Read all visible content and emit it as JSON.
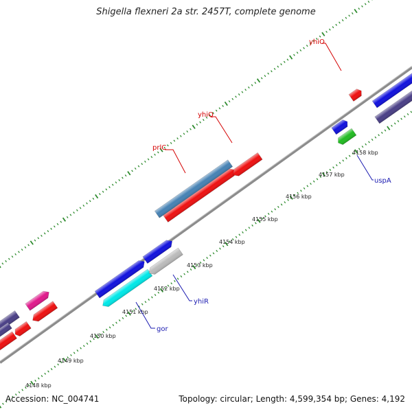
{
  "title": "Shigella flexneri 2a str. 2457T, complete genome",
  "footer": {
    "accession": "Accession: NC_004741",
    "summary": "Topology: circular; Length: 4,599,354 bp; Genes: 4,192"
  },
  "colors": {
    "backbone": "#8c8c8c",
    "tick": "#2e8b2e",
    "label_red": "#d40000",
    "label_blue": "#1a1ab0"
  },
  "kbp_labels": [
    "4148 kbp",
    "4149 kbp",
    "4150 kbp",
    "4151 kbp",
    "4152 kbp",
    "4153 kbp",
    "4154 kbp",
    "4155 kbp",
    "4156 kbp",
    "4157 kbp",
    "4158 kbp"
  ],
  "gene_labels": [
    {
      "name": "prlC",
      "color": "red"
    },
    {
      "name": "yhiQ",
      "color": "red"
    },
    {
      "name": "yhiO",
      "color": "red"
    },
    {
      "name": "gor",
      "color": "blue"
    },
    {
      "name": "yhiR",
      "color": "blue"
    },
    {
      "name": "uspA",
      "color": "blue"
    }
  ],
  "features": [
    {
      "id": "f1",
      "color": "#4a3f86",
      "strand": "forward"
    },
    {
      "id": "f2",
      "color": "#e01a8c",
      "strand": "forward"
    },
    {
      "id": "f3",
      "color": "#ee1111",
      "strand": "reverse"
    },
    {
      "id": "f4",
      "color": "#ee1111",
      "strand": "reverse"
    },
    {
      "id": "f5",
      "color": "#ee1111",
      "strand": "reverse"
    },
    {
      "id": "f6",
      "color": "#4a3f86",
      "strand": "reverse"
    },
    {
      "id": "f7",
      "color": "#1111dd",
      "strand": "forward"
    },
    {
      "id": "f8",
      "color": "#1111dd",
      "strand": "forward"
    },
    {
      "id": "f9",
      "color": "#00e8e8",
      "strand": "reverse"
    },
    {
      "id": "f10",
      "color": "#bbbbbb",
      "strand": "reverse"
    },
    {
      "id": "f11",
      "color": "#4682b4",
      "strand": "forward"
    },
    {
      "id": "f12",
      "color": "#ee1111",
      "strand": "forward"
    },
    {
      "id": "f13",
      "color": "#ee1111",
      "strand": "reverse"
    },
    {
      "id": "f14",
      "color": "#ee1111",
      "strand": "forward"
    },
    {
      "id": "f15",
      "color": "#1111dd",
      "strand": "forward"
    },
    {
      "id": "f16",
      "color": "#22bb22",
      "strand": "reverse"
    },
    {
      "id": "f17",
      "color": "#1111dd",
      "strand": "forward"
    },
    {
      "id": "f18",
      "color": "#4a3f86",
      "strand": "reverse"
    }
  ]
}
